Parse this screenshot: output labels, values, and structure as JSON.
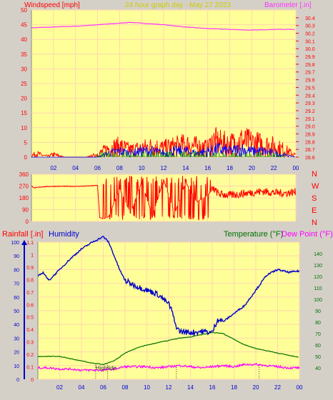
{
  "header": {
    "left_label": "Windspeed [mph]",
    "center_label": "24 hour graph day - May 27 2023",
    "right_label": "Barometer [.in]"
  },
  "colors": {
    "plot_bg": "#ffff99",
    "frame_bg": "#d4d0c8",
    "grid": "#ffd6b0",
    "axis_red": "#ff0000",
    "wind": "#ff0000",
    "gust_blue": "#0000ff",
    "calm_green": "#008000",
    "barometer": "#ff33ff",
    "humidity": "#0000cc",
    "temperature": "#007000",
    "dewpoint": "#ff00ff",
    "rain": "#0000cc",
    "title_yellow": "#cccc00"
  },
  "chart_data": [
    {
      "type": "line",
      "name": "wind_and_barometer",
      "title": "24 hour graph day - May 27 2023",
      "ylabel": "Windspeed [mph]",
      "y2label": "Barometer [.in]",
      "ylim": [
        0,
        50
      ],
      "y2lim": [
        28.6,
        30.5
      ],
      "yticks": [
        0,
        5,
        10,
        15,
        20,
        25,
        30,
        35,
        40,
        45,
        50
      ],
      "y2ticks": [
        28.6,
        28.7,
        28.8,
        28.9,
        29.0,
        29.1,
        29.2,
        29.3,
        29.4,
        29.5,
        29.6,
        29.7,
        29.8,
        29.9,
        30.0,
        30.1,
        30.2,
        30.3,
        30.4
      ],
      "xticks": [
        "02",
        "04",
        "06",
        "08",
        "10",
        "12",
        "14",
        "16",
        "18",
        "20",
        "22",
        "00"
      ],
      "xlim_hours": [
        0,
        24
      ],
      "grid": true,
      "series": [
        {
          "name": "Barometer",
          "axis": "right",
          "x": [
            0,
            2,
            4,
            6,
            8,
            9,
            10,
            12,
            14,
            16,
            18,
            20,
            22,
            24
          ],
          "values": [
            30.27,
            30.28,
            30.29,
            30.31,
            30.33,
            30.34,
            30.33,
            30.31,
            30.28,
            30.26,
            30.25,
            30.24,
            30.25,
            30.25
          ]
        },
        {
          "name": "Windspeed",
          "axis": "left",
          "x": [
            0,
            0.5,
            1,
            1.5,
            2,
            3,
            4,
            5,
            6,
            7,
            8,
            9,
            10,
            11,
            12,
            13,
            14,
            15,
            16,
            16.5,
            17,
            18,
            19,
            20,
            21,
            22,
            23,
            24
          ],
          "values": [
            1,
            2,
            1,
            0.5,
            1.5,
            0,
            0,
            0,
            1.5,
            5,
            6,
            4,
            5,
            6,
            5,
            6,
            7,
            6,
            5,
            9,
            8,
            7,
            9,
            8,
            7,
            6,
            4,
            1
          ]
        },
        {
          "name": "Gust",
          "axis": "left",
          "x": [
            0,
            6,
            7,
            8,
            9,
            10,
            11,
            12,
            13,
            14,
            15,
            16,
            17,
            18,
            19,
            20,
            21,
            22,
            23,
            24
          ],
          "values": [
            0,
            0,
            2,
            3,
            2,
            3,
            3,
            2,
            3,
            3,
            2,
            3,
            4,
            3,
            4,
            3,
            3,
            2,
            1,
            0
          ]
        }
      ]
    },
    {
      "type": "line",
      "name": "wind_direction",
      "yticks": [
        0,
        90,
        180,
        270,
        360
      ],
      "ylim": [
        0,
        360
      ],
      "right_labels": [
        "N",
        "W",
        "S",
        "E",
        "N"
      ],
      "xlim_hours": [
        0,
        24
      ],
      "series": [
        {
          "name": "Direction",
          "x": [
            0,
            0.3,
            1,
            2,
            3,
            4,
            5,
            6,
            6.2,
            6.5,
            7,
            8,
            9,
            10,
            11,
            12,
            13,
            14,
            15,
            16,
            16.5,
            17,
            18,
            19,
            20,
            21,
            22,
            23,
            24
          ],
          "values": [
            270,
            255,
            265,
            268,
            268,
            268,
            270,
            275,
            30,
            20,
            35,
            250,
            60,
            300,
            40,
            320,
            60,
            300,
            150,
            200,
            250,
            210,
            200,
            210,
            220,
            230,
            220,
            215,
            225
          ]
        }
      ]
    },
    {
      "type": "line",
      "name": "humidity_temperature",
      "leftlabel_1": "Rainfall [.in]",
      "leftlabel_2": "Humidity",
      "rightlabel_1": "Temperature (°F)",
      "rightlabel_2": "Dew Point (°F)",
      "humidity_ticks": [
        0,
        10,
        20,
        30,
        40,
        50,
        60,
        70,
        80,
        90,
        100
      ],
      "rain_ticks": [
        0,
        0.1,
        0.2,
        0.3,
        0.4,
        0.5,
        0.6,
        0.7,
        0.8,
        0.9,
        1,
        1.1
      ],
      "temp_ticks": [
        40,
        50,
        60,
        70,
        80,
        90,
        100,
        110,
        120,
        130,
        140
      ],
      "humidity_ylim": [
        0,
        100
      ],
      "rain_ylim": [
        0,
        1.1
      ],
      "temp_ylim": [
        30,
        150
      ],
      "xticks": [
        "02",
        "04",
        "06",
        "08",
        "10",
        "12",
        "14",
        "16",
        "18",
        "20",
        "22",
        "00"
      ],
      "xlim_hours": [
        0,
        24
      ],
      "annotation": "Hightide",
      "tide_marks_hours": [
        5.3,
        6.4,
        12.7,
        20.3
      ],
      "series": [
        {
          "name": "Humidity",
          "axis": "humidity",
          "x": [
            0,
            0.5,
            1,
            2,
            3,
            4,
            5,
            6,
            6.5,
            7,
            7.5,
            8,
            9,
            10,
            11,
            12,
            12.3,
            12.6,
            13,
            14,
            15,
            16,
            16.2,
            16.5,
            17,
            18,
            19,
            20,
            21,
            22,
            23,
            24
          ],
          "values": [
            75,
            78,
            72,
            80,
            88,
            95,
            100,
            104,
            100,
            90,
            80,
            72,
            68,
            65,
            62,
            55,
            50,
            40,
            35,
            34,
            35,
            34,
            38,
            44,
            42,
            48,
            54,
            65,
            76,
            80,
            78,
            79
          ]
        },
        {
          "name": "Temperature",
          "axis": "temp",
          "x": [
            0,
            1,
            2,
            3,
            4,
            5,
            6,
            7,
            8,
            9,
            10,
            11,
            12,
            13,
            14,
            15,
            16,
            17,
            18,
            19,
            20,
            21,
            22,
            23,
            24
          ],
          "values": [
            50,
            50,
            50,
            48,
            46,
            44,
            43,
            46,
            53,
            57,
            60,
            62,
            64,
            66,
            67,
            69,
            71,
            70,
            65,
            60,
            57,
            55,
            53,
            51,
            49
          ]
        },
        {
          "name": "Dew Point",
          "axis": "temp",
          "x": [
            0,
            1,
            2,
            3,
            4,
            5,
            6,
            7,
            8,
            9,
            10,
            11,
            12,
            13,
            14,
            15,
            16,
            17,
            18,
            19,
            20,
            21,
            22,
            23,
            24
          ],
          "values": [
            40,
            40,
            39,
            39,
            38,
            38,
            38,
            39,
            41,
            41,
            41,
            40,
            41,
            42,
            41,
            40,
            41,
            42,
            41,
            43,
            43,
            42,
            41,
            40,
            40
          ]
        },
        {
          "name": "Rainfall",
          "axis": "rain",
          "x": [
            0,
            24
          ],
          "values": [
            0,
            0
          ]
        }
      ]
    }
  ]
}
